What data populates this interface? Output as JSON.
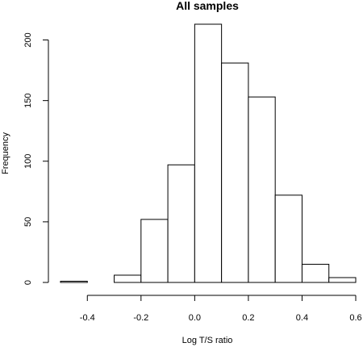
{
  "chart_data": {
    "type": "bar",
    "title": "All samples",
    "xlabel": "Log T/S ratio",
    "ylabel": "Frequency",
    "bins": [
      {
        "x0": -0.5,
        "x1": -0.4,
        "value": 1
      },
      {
        "x0": -0.4,
        "x1": -0.3,
        "value": 0
      },
      {
        "x0": -0.3,
        "x1": -0.2,
        "value": 6
      },
      {
        "x0": -0.2,
        "x1": -0.1,
        "value": 52
      },
      {
        "x0": -0.1,
        "x1": 0.0,
        "value": 97
      },
      {
        "x0": 0.0,
        "x1": 0.1,
        "value": 213
      },
      {
        "x0": 0.1,
        "x1": 0.2,
        "value": 181
      },
      {
        "x0": 0.2,
        "x1": 0.3,
        "value": 153
      },
      {
        "x0": 0.3,
        "x1": 0.4,
        "value": 72
      },
      {
        "x0": 0.4,
        "x1": 0.5,
        "value": 15
      },
      {
        "x0": 0.5,
        "x1": 0.6,
        "value": 4
      }
    ],
    "xticks": [
      -0.4,
      -0.2,
      0.0,
      0.2,
      0.4,
      0.6
    ],
    "xtick_labels": [
      "-0.4",
      "-0.2",
      "0.0",
      "0.2",
      "0.4",
      "0.6"
    ],
    "yticks": [
      0,
      50,
      100,
      150,
      200
    ],
    "ytick_labels": [
      "0",
      "50",
      "100",
      "150",
      "200"
    ],
    "xlim": [
      -0.5,
      0.6
    ],
    "ylim": [
      0,
      213
    ],
    "grid": false,
    "legend": "none"
  }
}
